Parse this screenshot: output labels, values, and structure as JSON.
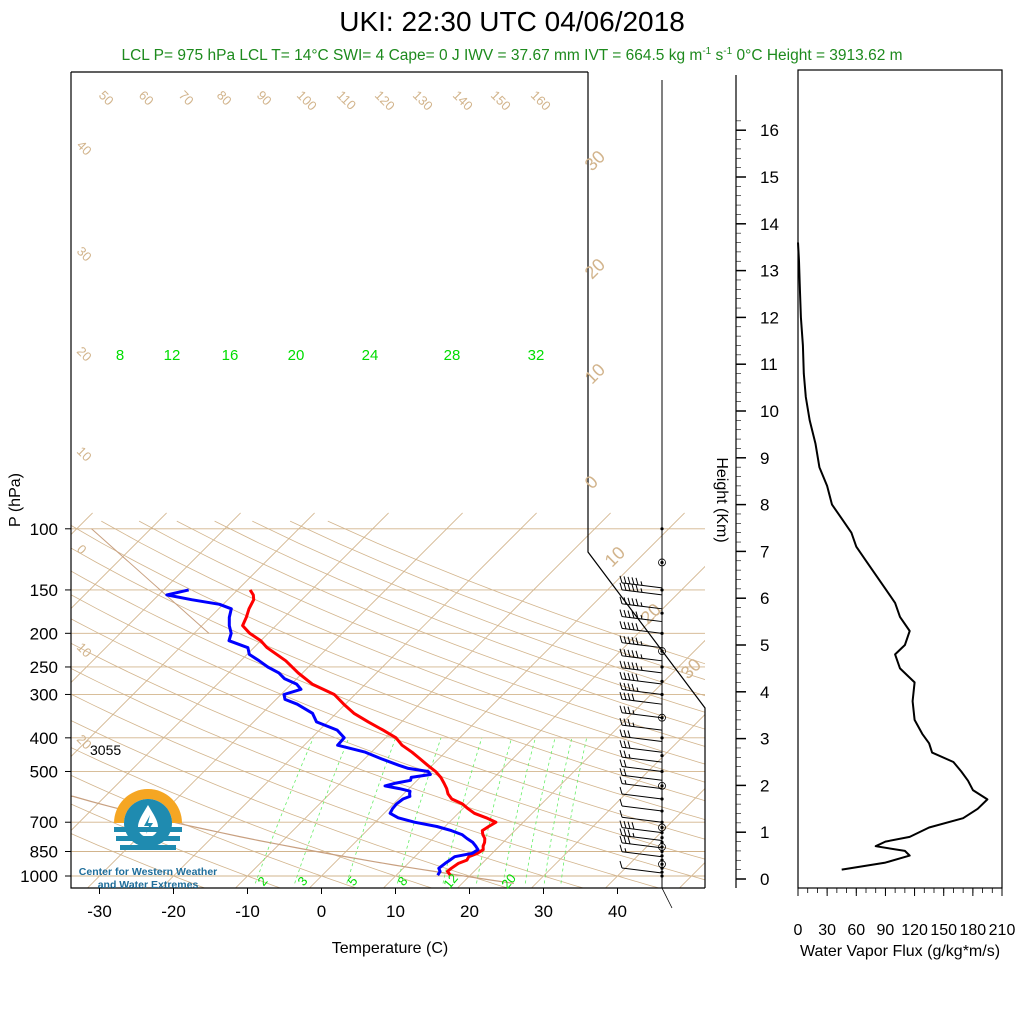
{
  "title": "UKI: 22:30 UTC 04/06/2018",
  "subtitle": {
    "main": "LCL P= 975 hPa  LCL T= 14°C  SWI= 4  Cape= 0 J  IWV = 37.67 mm  IVT = 664.5 kg m",
    "sup1": "-1",
    "mid": " s",
    "sup2": "-1",
    "tail": "  0°C Height = 3913.62 m"
  },
  "station_elevation_label": "3055",
  "logo": {
    "line1": "Center for Western Weather",
    "line2": "and Water Extremes",
    "colors": {
      "sun": "#f5a623",
      "water": "#1f8bb0"
    }
  },
  "colors": {
    "temperature": "#ff0000",
    "dewpoint": "#0000ff",
    "isotherm": "#d2b48c",
    "mixing_ratio": "#66ee66",
    "mixing_ratio_label": "#00dd00",
    "subtitle": "#1d8a1d"
  },
  "chart_data": [
    {
      "type": "line",
      "subtype": "skew-t log-p",
      "xlabel": "Temperature (C)",
      "ylabel": "P (hPa)",
      "xlim": [
        -33,
        52
      ],
      "ylim": [
        1050,
        100
      ],
      "x_ticks": [
        -30,
        -20,
        -10,
        0,
        10,
        20,
        30,
        40
      ],
      "y_ticks": [
        100,
        150,
        200,
        250,
        300,
        400,
        500,
        700,
        850,
        1000
      ],
      "y_scale": "log",
      "isotherm_label_values": [
        -40,
        -30,
        -20,
        -10,
        0,
        10,
        20,
        30
      ],
      "isotherm_top_labels": [
        50,
        60,
        70,
        80,
        90,
        100,
        110,
        120,
        130,
        140,
        150,
        160
      ],
      "isotherm_side_labels": [
        40,
        30,
        20,
        10,
        0,
        10,
        20
      ],
      "isotherm_right_labels": [
        30,
        20,
        10,
        0,
        10,
        20,
        30
      ],
      "mixing_ratio_labels_top": [
        8,
        12,
        16,
        20,
        24,
        28,
        32
      ],
      "mixing_ratio_labels_bottom": [
        2,
        3,
        5,
        8,
        12,
        20
      ],
      "series": [
        {
          "name": "Temperature",
          "p": [
            995,
            970,
            950,
            920,
            900,
            880,
            860,
            840,
            820,
            800,
            780,
            760,
            740,
            720,
            700,
            680,
            660,
            640,
            620,
            600,
            580,
            560,
            540,
            520,
            500,
            480,
            460,
            440,
            420,
            400,
            380,
            360,
            340,
            320,
            300,
            280,
            260,
            240,
            220,
            210,
            200,
            190,
            180,
            170,
            160,
            155,
            150
          ],
          "t": [
            17.3,
            16.4,
            16.5,
            16.8,
            17.5,
            17.3,
            18.0,
            18.3,
            17.8,
            17.5,
            17.0,
            16.2,
            15.6,
            15.9,
            16.3,
            14.4,
            12.2,
            10.7,
            9.3,
            7.2,
            6.0,
            5.1,
            4.0,
            2.8,
            1.3,
            -0.6,
            -2.5,
            -4.5,
            -6.8,
            -8.6,
            -11.4,
            -14.5,
            -17.6,
            -20.2,
            -22.8,
            -27.2,
            -30.6,
            -33.9,
            -38.2,
            -40.0,
            -42.5,
            -44.5,
            -45.1,
            -45.9,
            -46.5,
            -47.2,
            -48.3
          ]
        },
        {
          "name": "Dewpoint",
          "p": [
            995,
            970,
            950,
            920,
            900,
            880,
            860,
            840,
            820,
            800,
            780,
            760,
            740,
            720,
            700,
            680,
            660,
            640,
            620,
            600,
            590,
            580,
            570,
            560,
            550,
            540,
            530,
            520,
            510,
            500,
            490,
            480,
            460,
            440,
            420,
            400,
            380,
            360,
            340,
            320,
            310,
            300,
            290,
            280,
            270,
            260,
            250,
            240,
            230,
            220,
            210,
            200,
            190,
            180,
            170,
            165,
            160,
            155,
            150
          ],
          "t": [
            15.6,
            15.4,
            14.8,
            15.0,
            15.2,
            15.4,
            17.3,
            17.6,
            16.8,
            15.9,
            14.6,
            13.4,
            11.4,
            8.9,
            5.3,
            2.5,
            0.8,
            0.5,
            0.4,
            0.6,
            1.2,
            0.8,
            0.5,
            -1.3,
            -3.6,
            -2.5,
            -0.9,
            -1.2,
            1.0,
            0.3,
            -2.8,
            -4.5,
            -7.7,
            -10.8,
            -15.5,
            -15.6,
            -17.6,
            -21.5,
            -23.2,
            -26.5,
            -28.8,
            -29.6,
            -28.0,
            -29.3,
            -31.7,
            -33.2,
            -35.5,
            -37.5,
            -39.7,
            -40.8,
            -44.3,
            -45.0,
            -46.3,
            -47.4,
            -48.3,
            -50.5,
            -54.9,
            -58.9,
            -56.6
          ]
        }
      ],
      "wind_barbs": {
        "p": [
          980,
          880,
          830,
          790,
          750,
          700,
          650,
          600,
          560,
          530,
          500,
          470,
          440,
          410,
          380,
          350,
          320,
          300,
          280,
          260,
          240,
          220,
          200,
          185,
          170,
          155,
          148
        ],
        "speed_kt": [
          10,
          15,
          30,
          35,
          40,
          10,
          10,
          10,
          15,
          20,
          20,
          25,
          30,
          30,
          35,
          35,
          40,
          45,
          50,
          55,
          55,
          55,
          50,
          55,
          55,
          55,
          55
        ]
      }
    },
    {
      "type": "line",
      "subtype": "profile",
      "xlabel": "Water Vapor Flux (g/kg*m/s)",
      "ylabel": "Height (Km)",
      "xlim": [
        0,
        210
      ],
      "ylim": [
        -0.2,
        16.5
      ],
      "x_ticks": [
        0,
        30,
        60,
        90,
        120,
        150,
        180,
        210
      ],
      "y_ticks": [
        0,
        1,
        2,
        3,
        4,
        5,
        6,
        7,
        8,
        9,
        10,
        11,
        12,
        13,
        14,
        15,
        16
      ],
      "series": [
        {
          "name": "Water Vapor Flux",
          "height_km": [
            0.2,
            0.35,
            0.5,
            0.6,
            0.7,
            0.8,
            0.9,
            1.1,
            1.3,
            1.5,
            1.7,
            1.9,
            2.1,
            2.3,
            2.5,
            2.7,
            2.9,
            3.1,
            3.4,
            3.8,
            4.2,
            4.5,
            4.8,
            5.0,
            5.3,
            5.6,
            5.9,
            6.2,
            6.5,
            6.8,
            7.1,
            7.4,
            7.7,
            8.0,
            8.4,
            8.8,
            9.3,
            9.8,
            10.3,
            10.8,
            11.4,
            12.0,
            12.6,
            13.2,
            13.6
          ],
          "flux": [
            45,
            90,
            115,
            110,
            80,
            90,
            115,
            135,
            170,
            185,
            195,
            180,
            175,
            168,
            160,
            138,
            135,
            128,
            120,
            118,
            120,
            105,
            100,
            110,
            115,
            105,
            100,
            90,
            80,
            70,
            60,
            55,
            45,
            35,
            30,
            22,
            18,
            12,
            8,
            6,
            5,
            3,
            2,
            1,
            0
          ]
        }
      ]
    }
  ]
}
